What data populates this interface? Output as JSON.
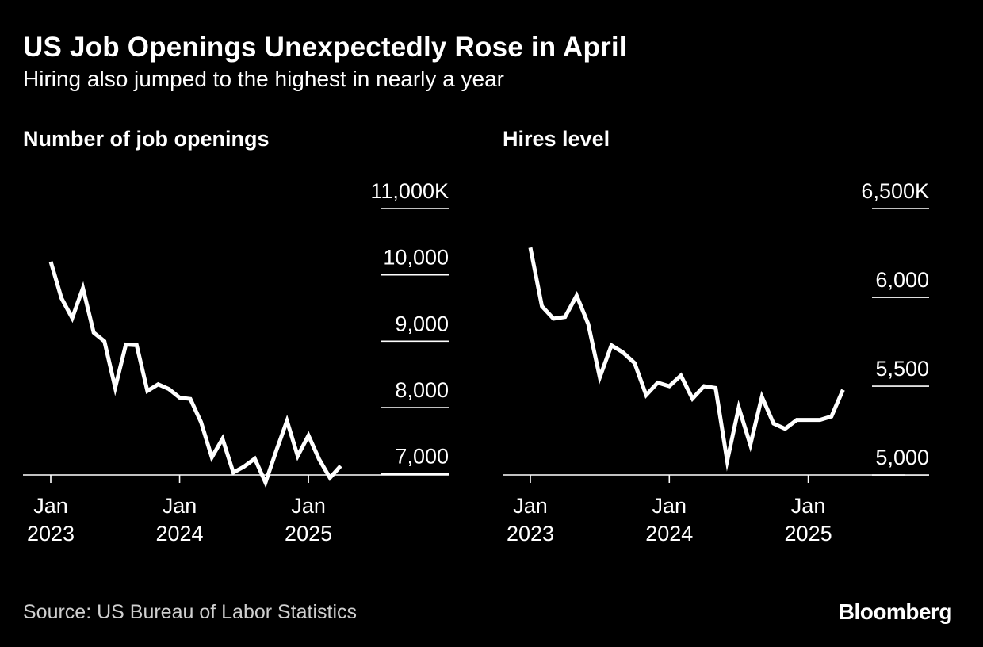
{
  "header": {
    "title": "US Job Openings Unexpectedly Rose in April",
    "subtitle": "Hiring also jumped to the highest in nearly a year"
  },
  "footer": {
    "source": "Source: US Bureau of Labor Statistics",
    "logo": "Bloomberg"
  },
  "colors": {
    "background": "#000000",
    "line": "#ffffff",
    "text": "#ffffff",
    "source_text": "#cfcfcf"
  },
  "chart_data": [
    {
      "type": "line",
      "title": "Number of job openings",
      "xlabel": "",
      "ylabel": "",
      "x": [
        "2023-01",
        "2023-02",
        "2023-03",
        "2023-04",
        "2023-05",
        "2023-06",
        "2023-07",
        "2023-08",
        "2023-09",
        "2023-10",
        "2023-11",
        "2023-12",
        "2024-01",
        "2024-02",
        "2024-03",
        "2024-04",
        "2024-05",
        "2024-06",
        "2024-07",
        "2024-08",
        "2024-09",
        "2024-10",
        "2024-11",
        "2024-12",
        "2025-01",
        "2025-02",
        "2025-03",
        "2025-04"
      ],
      "series": [
        {
          "values": [
            10200,
            9650,
            9350,
            9800,
            9130,
            9000,
            8300,
            8950,
            8940,
            8250,
            8350,
            8280,
            8150,
            8130,
            7780,
            7250,
            7530,
            7020,
            7110,
            7230,
            6870,
            7350,
            7800,
            7270,
            7580,
            7220,
            6940,
            7120
          ]
        }
      ],
      "ylim": [
        6650,
        11000
      ],
      "yticks": [
        7000,
        8000,
        9000,
        10000,
        11000
      ],
      "ytick_labels": [
        "7,000",
        "8,000",
        "9,000",
        "10,000",
        "11,000K"
      ],
      "xticks": [
        {
          "x": "2023-01",
          "line1": "Jan",
          "line2": "2023"
        },
        {
          "x": "2024-01",
          "line1": "Jan",
          "line2": "2024"
        },
        {
          "x": "2025-01",
          "line1": "Jan",
          "line2": "2025"
        }
      ],
      "x_end": "2025-10",
      "grid": true,
      "legend": "none"
    },
    {
      "type": "line",
      "title": "Hires level",
      "xlabel": "",
      "ylabel": "",
      "x": [
        "2023-01",
        "2023-02",
        "2023-03",
        "2023-04",
        "2023-05",
        "2023-06",
        "2023-07",
        "2023-08",
        "2023-09",
        "2023-10",
        "2023-11",
        "2023-12",
        "2024-01",
        "2024-02",
        "2024-03",
        "2024-04",
        "2024-05",
        "2024-06",
        "2024-07",
        "2024-08",
        "2024-09",
        "2024-10",
        "2024-11",
        "2024-12",
        "2025-01",
        "2025-02",
        "2025-03",
        "2025-04"
      ],
      "series": [
        {
          "values": [
            6280,
            5950,
            5880,
            5890,
            6010,
            5850,
            5550,
            5730,
            5690,
            5630,
            5450,
            5520,
            5500,
            5560,
            5430,
            5500,
            5490,
            5080,
            5380,
            5170,
            5440,
            5290,
            5260,
            5310,
            5310,
            5310,
            5330,
            5480
          ]
        }
      ],
      "ylim": [
        4880,
        6500
      ],
      "yticks": [
        5000,
        5500,
        6000,
        6500
      ],
      "ytick_labels": [
        "5,000",
        "5,500",
        "6,000",
        "6,500K"
      ],
      "xticks": [
        {
          "x": "2023-01",
          "line1": "Jan",
          "line2": "2023"
        },
        {
          "x": "2024-01",
          "line1": "Jan",
          "line2": "2024"
        },
        {
          "x": "2025-01",
          "line1": "Jan",
          "line2": "2025"
        }
      ],
      "x_end": "2025-05",
      "grid": true,
      "legend": "none"
    }
  ]
}
